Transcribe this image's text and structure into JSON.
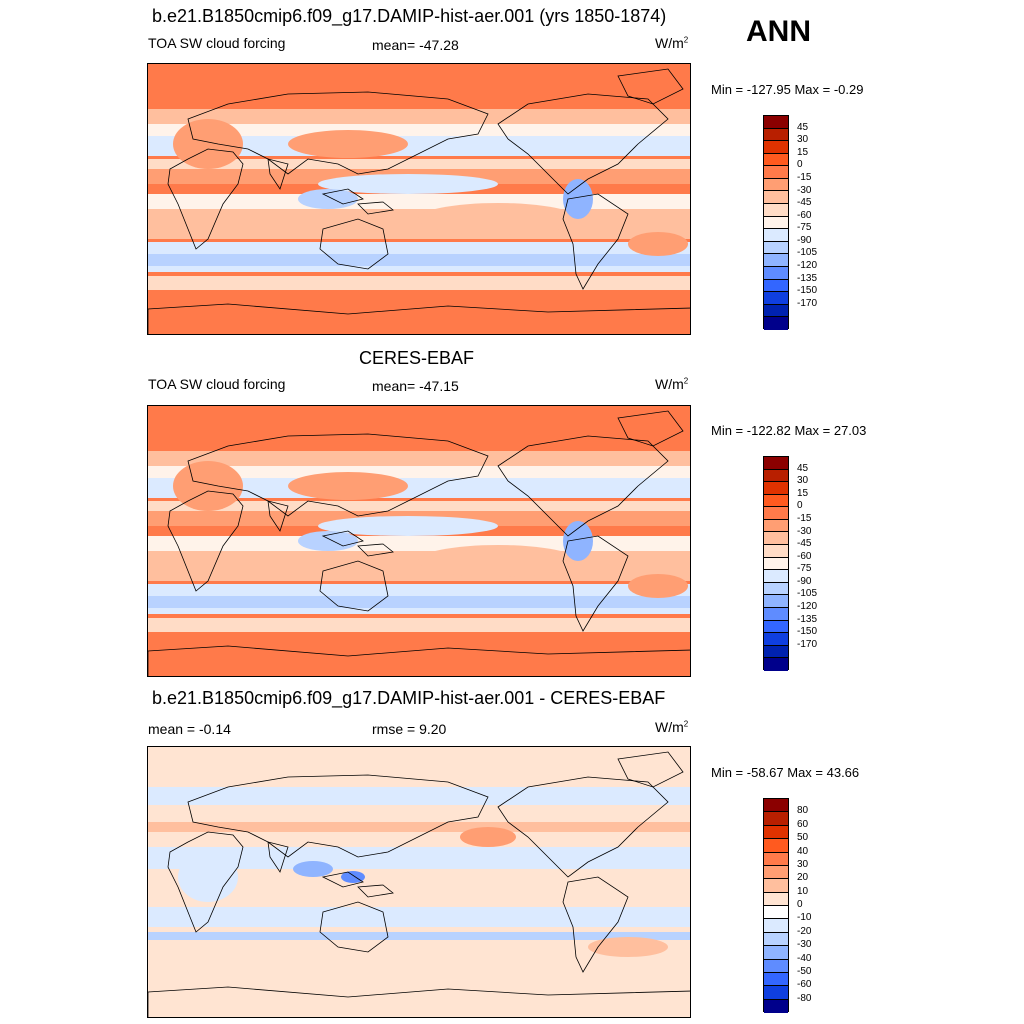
{
  "season": "ANN",
  "panels": [
    {
      "id": "model",
      "title": "b.e21.B1850cmip6.f09_g17.DAMIP-hist-aer.001 (yrs 1850-1874)",
      "left_label": "TOA SW cloud forcing",
      "center_label": "mean= -47.28",
      "units_base": "W/m",
      "units_sup": "2",
      "minmax": "Min = -127.95 Max =  -0.29",
      "colorbar_labels": [
        "45",
        "30",
        "15",
        "0",
        "-15",
        "-30",
        "-45",
        "-60",
        "-75",
        "-90",
        "-105",
        "-120",
        "-135",
        "-150",
        "-170"
      ],
      "colorbar_colors": [
        "#8b0000",
        "#b81f00",
        "#e03200",
        "#ff5a1f",
        "#ff7a4a",
        "#ff9e73",
        "#ffbf9e",
        "#ffdcc6",
        "#fff3ea",
        "#dbeaff",
        "#b8d2ff",
        "#8fb4ff",
        "#5f8cff",
        "#3366ff",
        "#0f3fe0",
        "#0022b0",
        "#00008b"
      ]
    },
    {
      "id": "obs",
      "title": "CERES-EBAF",
      "left_label": "TOA SW cloud forcing",
      "center_label": "mean= -47.15",
      "units_base": "W/m",
      "units_sup": "2",
      "minmax": "Min = -122.82 Max =  27.03",
      "colorbar_labels": [
        "45",
        "30",
        "15",
        "0",
        "-15",
        "-30",
        "-45",
        "-60",
        "-75",
        "-90",
        "-105",
        "-120",
        "-135",
        "-150",
        "-170"
      ],
      "colorbar_colors": [
        "#8b0000",
        "#b81f00",
        "#e03200",
        "#ff5a1f",
        "#ff7a4a",
        "#ff9e73",
        "#ffbf9e",
        "#ffdcc6",
        "#fff3ea",
        "#dbeaff",
        "#b8d2ff",
        "#8fb4ff",
        "#5f8cff",
        "#3366ff",
        "#0f3fe0",
        "#0022b0",
        "#00008b"
      ]
    },
    {
      "id": "diff",
      "title": "b.e21.B1850cmip6.f09_g17.DAMIP-hist-aer.001 - CERES-EBAF",
      "left_label": "mean =  -0.14",
      "center_label": "rmse =   9.20",
      "units_base": "W/m",
      "units_sup": "2",
      "minmax": "Min = -58.67 Max =  43.66",
      "colorbar_labels": [
        "80",
        "60",
        "50",
        "40",
        "30",
        "20",
        "10",
        "0",
        "-10",
        "-20",
        "-30",
        "-40",
        "-50",
        "-60",
        "-80"
      ],
      "colorbar_colors": [
        "#8b0000",
        "#b81f00",
        "#e03200",
        "#ff5a1f",
        "#ff7a4a",
        "#ff9e73",
        "#ffbf9e",
        "#ffe4d2",
        "#ffffff",
        "#dbeaff",
        "#b8d2ff",
        "#8fb4ff",
        "#5f8cff",
        "#3366ff",
        "#0f3fe0",
        "#00008b"
      ]
    }
  ]
}
